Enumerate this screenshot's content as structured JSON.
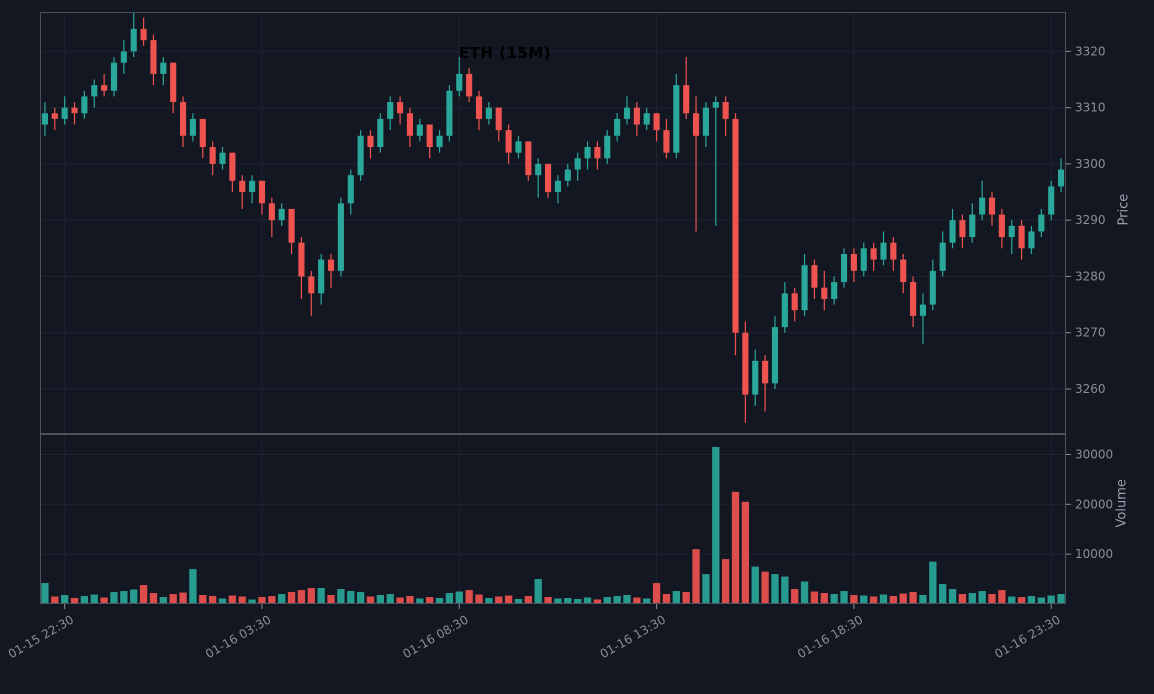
{
  "title": "ETH (15M)",
  "colors": {
    "background": "#131722",
    "up": "#2aa79b",
    "down": "#ef5350",
    "grid": "#1e2330",
    "border": "#4c515c",
    "tick_text": "#8a8e98",
    "axis_title_text": "#9aa0ab",
    "title_text": "#000000"
  },
  "chart_data": {
    "type": "candlestick",
    "title": "ETH (15M)",
    "ylabel_price": "Price",
    "ylabel_volume": "Volume",
    "x_tick_labels": [
      "01-15 22:30",
      "01-16 03:30",
      "01-16 08:30",
      "01-16 13:30",
      "01-16 18:30",
      "01-16 23:30"
    ],
    "x_tick_positions": [
      2,
      22,
      42,
      62,
      82,
      102
    ],
    "price_yticks": [
      3260,
      3270,
      3280,
      3290,
      3300,
      3310,
      3320
    ],
    "price_ylim": [
      3252,
      3327
    ],
    "volume_yticks": [
      10000,
      20000,
      30000
    ],
    "volume_ylim": [
      0,
      33500
    ],
    "grid": true,
    "legend": "none",
    "candles_format": [
      "open",
      "high",
      "low",
      "close",
      "volume"
    ],
    "candles": [
      [
        3307,
        3311,
        3305,
        3309,
        4200
      ],
      [
        3309,
        3310,
        3306,
        3308,
        1500
      ],
      [
        3308,
        3312,
        3307,
        3310,
        1800
      ],
      [
        3310,
        3311,
        3307,
        3309,
        1200
      ],
      [
        3309,
        3313,
        3308,
        3312,
        1600
      ],
      [
        3312,
        3315,
        3310,
        3314,
        1900
      ],
      [
        3314,
        3316,
        3312,
        3313,
        1300
      ],
      [
        3313,
        3319,
        3312,
        3318,
        2400
      ],
      [
        3318,
        3322,
        3316,
        3320,
        2600
      ],
      [
        3320,
        3327,
        3319,
        3324,
        2900
      ],
      [
        3324,
        3326,
        3321,
        3322,
        3800
      ],
      [
        3322,
        3323,
        3314,
        3316,
        2200
      ],
      [
        3316,
        3319,
        3314,
        3318,
        1400
      ],
      [
        3318,
        3318,
        3309,
        3311,
        2000
      ],
      [
        3311,
        3312,
        3303,
        3305,
        2300
      ],
      [
        3305,
        3309,
        3304,
        3308,
        7000
      ],
      [
        3308,
        3308,
        3301,
        3303,
        1800
      ],
      [
        3303,
        3304,
        3298,
        3300,
        1600
      ],
      [
        3300,
        3303,
        3299,
        3302,
        1100
      ],
      [
        3302,
        3302,
        3295,
        3297,
        1700
      ],
      [
        3297,
        3298,
        3292,
        3295,
        1500
      ],
      [
        3295,
        3298,
        3293,
        3297,
        900
      ],
      [
        3297,
        3297,
        3291,
        3293,
        1400
      ],
      [
        3293,
        3294,
        3287,
        3290,
        1600
      ],
      [
        3290,
        3293,
        3289,
        3292,
        2000
      ],
      [
        3292,
        3292,
        3284,
        3286,
        2400
      ],
      [
        3286,
        3287,
        3276,
        3280,
        2800
      ],
      [
        3280,
        3281,
        3273,
        3277,
        3200
      ],
      [
        3277,
        3284,
        3275,
        3283,
        3200
      ],
      [
        3283,
        3284,
        3278,
        3281,
        1800
      ],
      [
        3281,
        3294,
        3280,
        3293,
        3000
      ],
      [
        3293,
        3299,
        3291,
        3298,
        2600
      ],
      [
        3298,
        3306,
        3297,
        3305,
        2400
      ],
      [
        3305,
        3306,
        3301,
        3303,
        1500
      ],
      [
        3303,
        3309,
        3302,
        3308,
        1800
      ],
      [
        3308,
        3312,
        3306,
        3311,
        2000
      ],
      [
        3311,
        3312,
        3307,
        3309,
        1300
      ],
      [
        3309,
        3310,
        3303,
        3305,
        1600
      ],
      [
        3305,
        3308,
        3304,
        3307,
        1100
      ],
      [
        3307,
        3307,
        3301,
        3303,
        1400
      ],
      [
        3303,
        3306,
        3302,
        3305,
        1200
      ],
      [
        3305,
        3314,
        3304,
        3313,
        2200
      ],
      [
        3313,
        3319,
        3312,
        3316,
        2500
      ],
      [
        3316,
        3317,
        3311,
        3312,
        2800
      ],
      [
        3312,
        3313,
        3306,
        3308,
        1900
      ],
      [
        3308,
        3311,
        3307,
        3310,
        1200
      ],
      [
        3310,
        3310,
        3304,
        3306,
        1500
      ],
      [
        3306,
        3307,
        3300,
        3302,
        1700
      ],
      [
        3302,
        3305,
        3301,
        3304,
        1000
      ],
      [
        3304,
        3304,
        3297,
        3298,
        1600
      ],
      [
        3298,
        3301,
        3294,
        3300,
        5000
      ],
      [
        3300,
        3300,
        3294,
        3295,
        1400
      ],
      [
        3295,
        3298,
        3293,
        3297,
        1100
      ],
      [
        3297,
        3300,
        3296,
        3299,
        1200
      ],
      [
        3299,
        3302,
        3297,
        3301,
        1000
      ],
      [
        3301,
        3304,
        3299,
        3303,
        1300
      ],
      [
        3303,
        3304,
        3299,
        3301,
        900
      ],
      [
        3301,
        3306,
        3300,
        3305,
        1400
      ],
      [
        3305,
        3309,
        3304,
        3308,
        1600
      ],
      [
        3308,
        3312,
        3307,
        3310,
        1800
      ],
      [
        3310,
        3311,
        3305,
        3307,
        1300
      ],
      [
        3307,
        3310,
        3306,
        3309,
        1100
      ],
      [
        3309,
        3309,
        3304,
        3306,
        4200
      ],
      [
        3306,
        3308,
        3301,
        3302,
        2000
      ],
      [
        3302,
        3316,
        3301,
        3314,
        2600
      ],
      [
        3314,
        3319,
        3308,
        3309,
        2400
      ],
      [
        3309,
        3312,
        3288,
        3305,
        11000
      ],
      [
        3305,
        3311,
        3303,
        3310,
        6000
      ],
      [
        3310,
        3312,
        3289,
        3311,
        31500
      ],
      [
        3311,
        3312,
        3305,
        3308,
        9000
      ],
      [
        3308,
        3309,
        3266,
        3270,
        22500
      ],
      [
        3270,
        3272,
        3254,
        3259,
        20500
      ],
      [
        3259,
        3267,
        3257,
        3265,
        7500
      ],
      [
        3265,
        3266,
        3256,
        3261,
        6500
      ],
      [
        3261,
        3273,
        3260,
        3271,
        6000
      ],
      [
        3271,
        3279,
        3270,
        3277,
        5500
      ],
      [
        3277,
        3278,
        3272,
        3274,
        3000
      ],
      [
        3274,
        3284,
        3273,
        3282,
        4500
      ],
      [
        3282,
        3283,
        3276,
        3278,
        2500
      ],
      [
        3278,
        3281,
        3274,
        3276,
        2200
      ],
      [
        3276,
        3280,
        3275,
        3279,
        2000
      ],
      [
        3279,
        3285,
        3278,
        3284,
        2600
      ],
      [
        3284,
        3285,
        3279,
        3281,
        1800
      ],
      [
        3281,
        3286,
        3280,
        3285,
        1700
      ],
      [
        3285,
        3286,
        3281,
        3283,
        1500
      ],
      [
        3283,
        3288,
        3282,
        3286,
        1900
      ],
      [
        3286,
        3287,
        3281,
        3283,
        1600
      ],
      [
        3283,
        3284,
        3277,
        3279,
        2100
      ],
      [
        3279,
        3280,
        3271,
        3273,
        2400
      ],
      [
        3273,
        3277,
        3268,
        3275,
        1800
      ],
      [
        3275,
        3283,
        3274,
        3281,
        8500
      ],
      [
        3281,
        3288,
        3280,
        3286,
        4000
      ],
      [
        3286,
        3292,
        3285,
        3290,
        3000
      ],
      [
        3290,
        3291,
        3285,
        3287,
        2000
      ],
      [
        3287,
        3293,
        3286,
        3291,
        2200
      ],
      [
        3291,
        3297,
        3290,
        3294,
        2600
      ],
      [
        3294,
        3295,
        3289,
        3291,
        2000
      ],
      [
        3291,
        3292,
        3285,
        3287,
        2800
      ],
      [
        3287,
        3290,
        3284,
        3289,
        1500
      ],
      [
        3289,
        3290,
        3283,
        3285,
        1400
      ],
      [
        3285,
        3289,
        3284,
        3288,
        1600
      ],
      [
        3288,
        3292,
        3287,
        3291,
        1300
      ],
      [
        3291,
        3297,
        3290,
        3296,
        1700
      ],
      [
        3296,
        3301,
        3295,
        3299,
        2000
      ]
    ]
  }
}
